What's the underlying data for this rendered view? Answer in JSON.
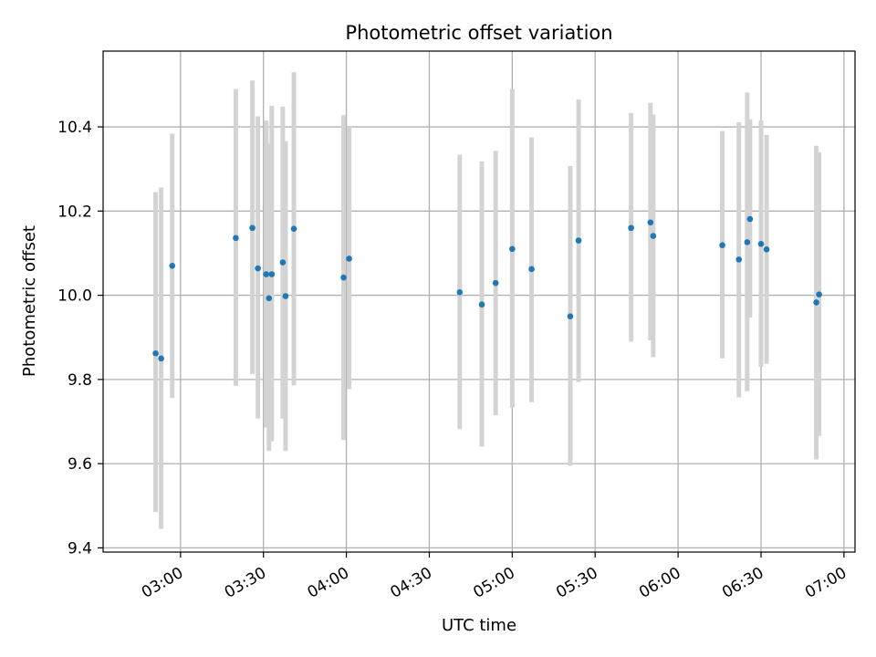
{
  "chart_data": {
    "type": "scatter",
    "title": "Photometric offset variation",
    "xlabel": "UTC time",
    "ylabel": "Photometric offset",
    "grid": true,
    "x_tick_labels": [
      "03:00",
      "03:30",
      "04:00",
      "04:30",
      "05:00",
      "05:30",
      "06:00",
      "06:30",
      "07:00"
    ],
    "y_ticks": [
      9.4,
      9.6,
      9.8,
      10.0,
      10.2,
      10.4
    ],
    "y_tick_labels": [
      "9.4",
      "9.6",
      "9.8",
      "10.0",
      "10.2",
      "10.4"
    ],
    "xlim": [
      "02:32",
      "07:04"
    ],
    "ylim": [
      9.39,
      10.58
    ],
    "marker_color": "#1f77b4",
    "errorbar_color": "#d3d3d3",
    "points": [
      {
        "x": "02:51",
        "y": 9.862,
        "ylow": 9.485,
        "yhigh": 10.245
      },
      {
        "x": "02:53",
        "y": 9.85,
        "ylow": 9.445,
        "yhigh": 10.256
      },
      {
        "x": "02:57",
        "y": 10.07,
        "ylow": 9.756,
        "yhigh": 10.384
      },
      {
        "x": "03:20",
        "y": 10.136,
        "ylow": 9.785,
        "yhigh": 10.49
      },
      {
        "x": "03:26",
        "y": 10.16,
        "ylow": 9.813,
        "yhigh": 10.51
      },
      {
        "x": "03:28",
        "y": 10.064,
        "ylow": 9.707,
        "yhigh": 10.425
      },
      {
        "x": "03:31",
        "y": 10.05,
        "ylow": 9.686,
        "yhigh": 10.415
      },
      {
        "x": "03:32",
        "y": 9.993,
        "ylow": 9.63,
        "yhigh": 10.36
      },
      {
        "x": "03:33",
        "y": 10.05,
        "ylow": 9.653,
        "yhigh": 10.45
      },
      {
        "x": "03:37",
        "y": 10.078,
        "ylow": 9.707,
        "yhigh": 10.448
      },
      {
        "x": "03:38",
        "y": 9.998,
        "ylow": 9.63,
        "yhigh": 10.366
      },
      {
        "x": "03:41",
        "y": 10.158,
        "ylow": 9.786,
        "yhigh": 10.53
      },
      {
        "x": "03:59",
        "y": 10.042,
        "ylow": 9.656,
        "yhigh": 10.428
      },
      {
        "x": "04:01",
        "y": 10.087,
        "ylow": 9.777,
        "yhigh": 10.4
      },
      {
        "x": "04:41",
        "y": 10.007,
        "ylow": 9.682,
        "yhigh": 10.334
      },
      {
        "x": "04:49",
        "y": 9.978,
        "ylow": 9.64,
        "yhigh": 10.318
      },
      {
        "x": "04:54",
        "y": 10.029,
        "ylow": 9.715,
        "yhigh": 10.343
      },
      {
        "x": "05:00",
        "y": 10.11,
        "ylow": 9.733,
        "yhigh": 10.49
      },
      {
        "x": "05:07",
        "y": 10.062,
        "ylow": 9.746,
        "yhigh": 10.375
      },
      {
        "x": "05:21",
        "y": 9.95,
        "ylow": 9.595,
        "yhigh": 10.307
      },
      {
        "x": "05:24",
        "y": 10.13,
        "ylow": 9.794,
        "yhigh": 10.465
      },
      {
        "x": "05:43",
        "y": 10.16,
        "ylow": 9.89,
        "yhigh": 10.433
      },
      {
        "x": "05:50",
        "y": 10.173,
        "ylow": 9.893,
        "yhigh": 10.457
      },
      {
        "x": "05:51",
        "y": 10.141,
        "ylow": 9.853,
        "yhigh": 10.429
      },
      {
        "x": "06:16",
        "y": 10.119,
        "ylow": 9.85,
        "yhigh": 10.39
      },
      {
        "x": "06:22",
        "y": 10.085,
        "ylow": 9.757,
        "yhigh": 10.411
      },
      {
        "x": "06:25",
        "y": 10.126,
        "ylow": 9.772,
        "yhigh": 10.482
      },
      {
        "x": "06:26",
        "y": 10.181,
        "ylow": 9.947,
        "yhigh": 10.418
      },
      {
        "x": "06:30",
        "y": 10.122,
        "ylow": 9.83,
        "yhigh": 10.415
      },
      {
        "x": "06:32",
        "y": 10.109,
        "ylow": 9.837,
        "yhigh": 10.381
      },
      {
        "x": "06:50",
        "y": 9.983,
        "ylow": 9.61,
        "yhigh": 10.355
      },
      {
        "x": "06:51",
        "y": 10.002,
        "ylow": 9.666,
        "yhigh": 10.34
      }
    ]
  }
}
